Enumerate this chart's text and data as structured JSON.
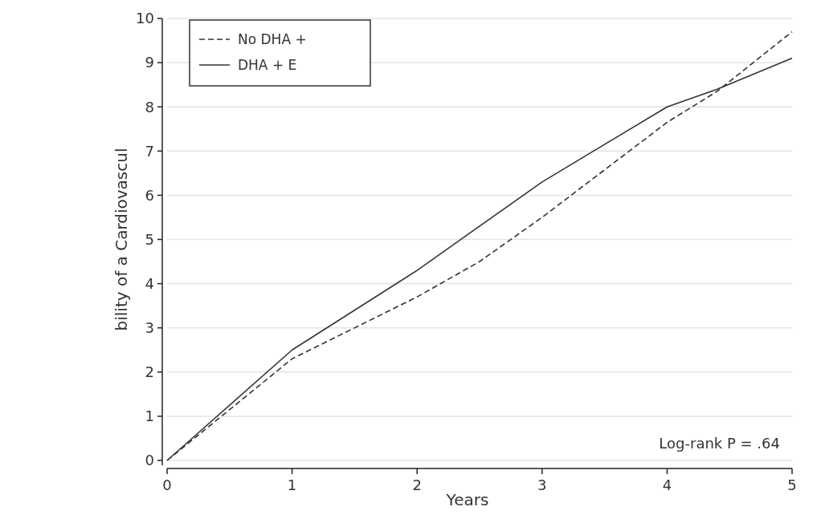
{
  "chart_data": {
    "type": "line",
    "xlabel": "Years",
    "ylabel": "bility of a Cardiovascul",
    "x": [
      0,
      1,
      2,
      2.5,
      3,
      4,
      4.4,
      5
    ],
    "series": [
      {
        "name": "No DHA +",
        "color": "#333333",
        "line_style": "dashed",
        "values": [
          0,
          2.3,
          3.7,
          4.5,
          5.5,
          7.65,
          8.35,
          9.7
        ]
      },
      {
        "name": "DHA + E",
        "color": "#333333",
        "line_style": "solid",
        "values": [
          0,
          2.5,
          4.3,
          5.3,
          6.3,
          8.0,
          8.4,
          9.1
        ]
      }
    ],
    "xlim": [
      0,
      5
    ],
    "xticks": [
      0,
      1,
      2,
      3,
      4,
      5
    ],
    "ylim": [
      0,
      10
    ],
    "yticks": [
      0,
      1,
      2,
      3,
      4,
      5,
      6,
      7,
      8,
      9,
      10
    ],
    "grid": "y",
    "legend": "top left",
    "annotations": [
      "Log-rank P = .64"
    ]
  }
}
